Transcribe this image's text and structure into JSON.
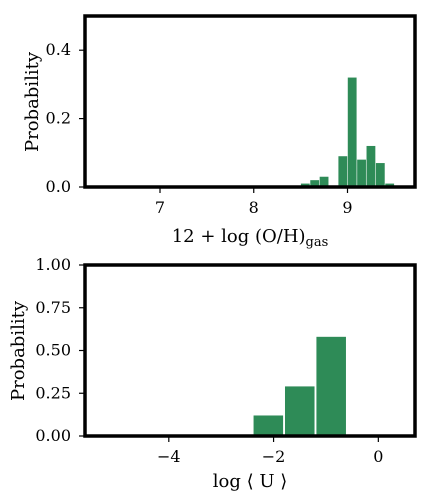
{
  "chart_data": [
    {
      "type": "bar",
      "title": "",
      "xlabel": "12 + log (O/H)",
      "xlabel_subscript": "gas",
      "ylabel": "Probability",
      "xlim": [
        6.2,
        9.72
      ],
      "ylim": [
        0.0,
        0.5
      ],
      "xticks": [
        "7",
        "8",
        "9"
      ],
      "yticks": [
        "0.0",
        "0.2",
        "0.4"
      ],
      "bar_color": "#2e8b57",
      "bin_width": 0.1,
      "bins": [
        {
          "x": 8.55,
          "value": 0.01
        },
        {
          "x": 8.65,
          "value": 0.02
        },
        {
          "x": 8.75,
          "value": 0.03
        },
        {
          "x": 8.85,
          "value": 0.0
        },
        {
          "x": 8.95,
          "value": 0.09
        },
        {
          "x": 9.05,
          "value": 0.32
        },
        {
          "x": 9.15,
          "value": 0.08
        },
        {
          "x": 9.25,
          "value": 0.12
        },
        {
          "x": 9.35,
          "value": 0.07
        },
        {
          "x": 9.45,
          "value": 0.01
        }
      ]
    },
    {
      "type": "bar",
      "title": "",
      "xlabel": "log ⟨ U ⟩",
      "ylabel": "Probability",
      "xlim": [
        -5.6,
        0.7
      ],
      "ylim": [
        0.0,
        1.0
      ],
      "xticks": [
        "−4",
        "−2",
        "0"
      ],
      "yticks": [
        "0.00",
        "0.25",
        "0.50",
        "0.75",
        "1.00"
      ],
      "bar_color": "#2e8b57",
      "bin_width": 0.6,
      "bins": [
        {
          "x": -2.1,
          "value": 0.12
        },
        {
          "x": -1.5,
          "value": 0.29
        },
        {
          "x": -0.9,
          "value": 0.58
        }
      ]
    }
  ]
}
